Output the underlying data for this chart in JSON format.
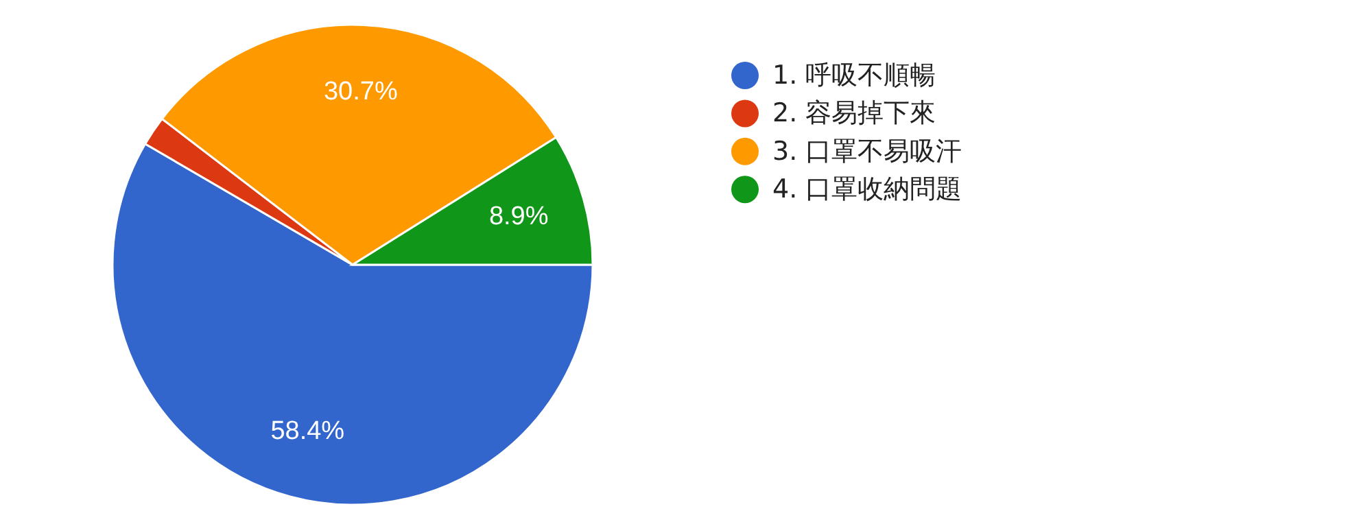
{
  "chart_data": {
    "type": "pie",
    "categories": [
      "1. 呼吸不順暢",
      "2. 容易掉下來",
      "3. 口罩不易吸汗",
      "4. 口罩收納問題"
    ],
    "values": [
      58.4,
      2.0,
      30.7,
      8.9
    ],
    "colors": [
      "#3366cc",
      "#dc3912",
      "#ff9900",
      "#109618"
    ],
    "value_labels": [
      "58.4%",
      null,
      "30.7%",
      "8.9%"
    ],
    "legend": "right"
  }
}
